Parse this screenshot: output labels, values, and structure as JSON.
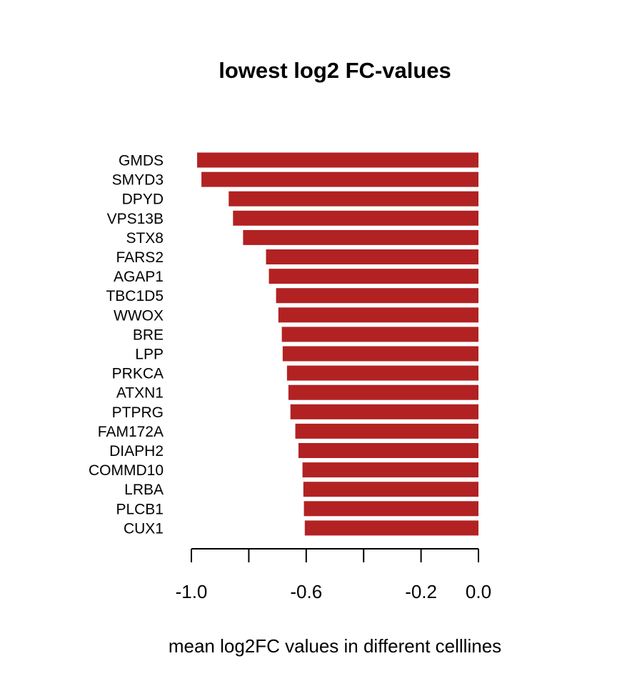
{
  "chart_data": {
    "type": "bar",
    "orientation": "horizontal",
    "title": "lowest log2 FC-values",
    "xlabel": "mean log2FC values in different celllines",
    "ylabel": "",
    "categories": [
      "GMDS",
      "SMYD3",
      "DPYD",
      "VPS13B",
      "STX8",
      "FARS2",
      "AGAP1",
      "TBC1D5",
      "WWOX",
      "BRE",
      "LPP",
      "PRKCA",
      "ATXN1",
      "PTPRG",
      "FAM172A",
      "DIAPH2",
      "COMMD10",
      "LRBA",
      "PLCB1",
      "CUX1"
    ],
    "values": [
      -0.98,
      -0.965,
      -0.87,
      -0.855,
      -0.82,
      -0.74,
      -0.73,
      -0.705,
      -0.697,
      -0.685,
      -0.682,
      -0.667,
      -0.662,
      -0.655,
      -0.638,
      -0.627,
      -0.613,
      -0.61,
      -0.608,
      -0.605
    ],
    "xlim": [
      -1.0,
      0.0
    ],
    "xticks": [
      -1.0,
      -0.8,
      -0.6,
      -0.4,
      -0.2,
      0.0
    ],
    "xtick_labels": [
      "-1.0",
      "",
      "-0.6",
      "",
      "-0.2",
      "0.0"
    ],
    "bar_color": "#b22222",
    "grid": false,
    "legend": "none"
  }
}
